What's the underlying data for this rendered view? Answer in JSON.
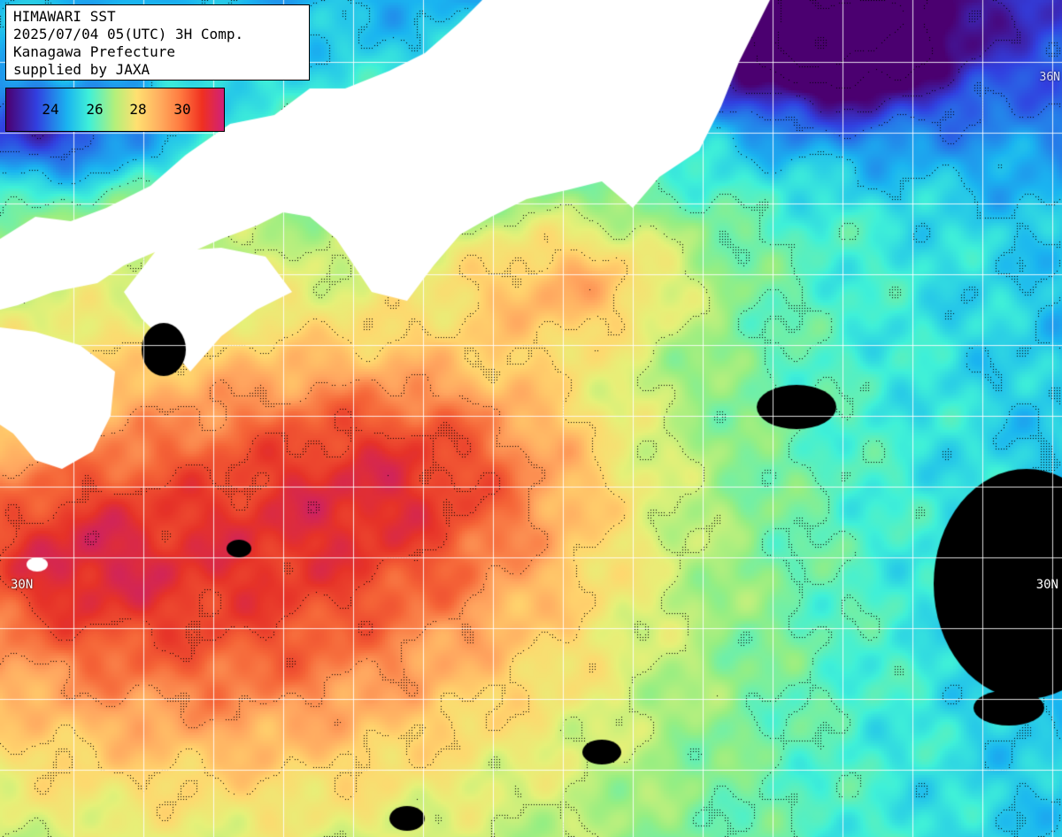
{
  "header": {
    "line1": "HIMAWARI SST",
    "line2": "2025/07/04 05(UTC) 3H Comp.",
    "line3": "Kanagawa Prefecture",
    "line4": "supplied by JAXA"
  },
  "legend": {
    "labels": [
      "24",
      "26",
      "28",
      "30"
    ]
  },
  "grid_labels": {
    "lat_left": "30N",
    "lat_right": "30N",
    "lat_top_right": "36N"
  },
  "colors": {
    "land": "#ffffff",
    "no_data": "#000000",
    "grid": "#ffffff",
    "contour": "#000000"
  },
  "icons": [
    "info-box",
    "color-scale-legend"
  ]
}
